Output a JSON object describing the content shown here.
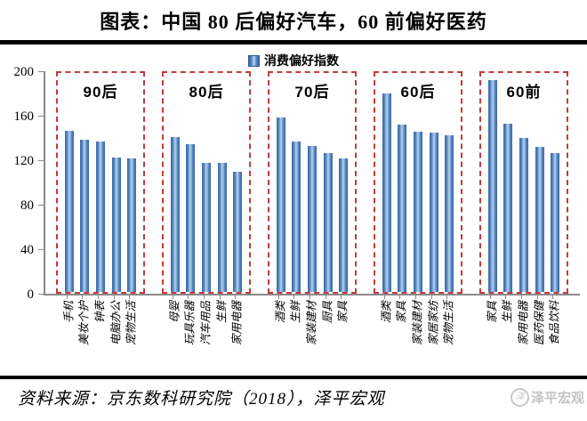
{
  "title": "图表：中国 80 后偏好汽车，60 前偏好医药",
  "legend": {
    "label": "消费偏好指数"
  },
  "source": {
    "text": "资料来源：京东数科研究院（2018），泽平宏观",
    "watermark": "泽平宏观",
    "watermark_logo": "泽"
  },
  "colors": {
    "bar_blue": "#4f81bd",
    "bar_blue_dark": "#3a67a3",
    "bar_blue_light": "#b9d1ec",
    "box_red": "#c13b3b",
    "axis_gray": "#8a8a8a"
  },
  "chart_data": {
    "type": "bar",
    "title": "消费偏好指数",
    "xlabel": "",
    "ylabel": "",
    "ylim": [
      0,
      200
    ],
    "yticks": [
      0,
      40,
      80,
      120,
      160,
      200
    ],
    "grid": false,
    "legend_entries": [
      "消费偏好指数"
    ],
    "legend_position": "top-center",
    "groups": [
      {
        "label": "90后",
        "categories": [
          "手机",
          "美妆个护",
          "钟表",
          "电脑办公",
          "宠物生活"
        ],
        "values": [
          145,
          137,
          135,
          121,
          120
        ]
      },
      {
        "label": "80后",
        "categories": [
          "母婴",
          "玩具乐器",
          "汽车用品",
          "生鲜",
          "家用电器"
        ],
        "values": [
          139,
          133,
          116,
          116,
          108
        ]
      },
      {
        "label": "70后",
        "categories": [
          "酒类",
          "生鲜",
          "家装建材",
          "厨具",
          "家具"
        ],
        "values": [
          157,
          135,
          131,
          125,
          120
        ]
      },
      {
        "label": "60后",
        "categories": [
          "酒类",
          "家具",
          "家装建材",
          "家居家纺",
          "宠物生活"
        ],
        "values": [
          178,
          150,
          144,
          143,
          141
        ]
      },
      {
        "label": "60前",
        "categories": [
          "家具",
          "生鲜",
          "家用电器",
          "医药保健",
          "食品饮料"
        ],
        "values": [
          190,
          151,
          138,
          130,
          125
        ]
      }
    ]
  }
}
